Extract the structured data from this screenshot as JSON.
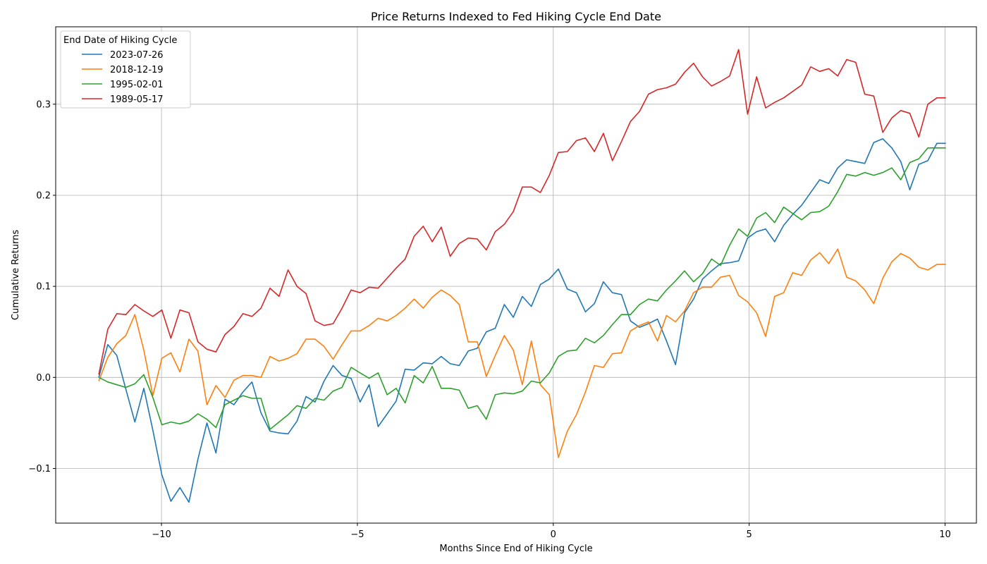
{
  "chart_data": {
    "type": "line",
    "title": "Price Returns Indexed to Fed Hiking Cycle End Date",
    "xlabel": "Months Since End of Hiking Cycle",
    "ylabel": "Cumulative Returns",
    "xlim": [
      -12.7,
      10.8
    ],
    "ylim": [
      -0.16,
      0.385
    ],
    "xticks": [
      -10,
      -5,
      0,
      5,
      10
    ],
    "xtick_labels": [
      "−10",
      "−5",
      "0",
      "5",
      "10"
    ],
    "yticks": [
      -0.1,
      0,
      0.1,
      0.2,
      0.3
    ],
    "ytick_labels": [
      "−0.1",
      "0.0",
      "0.1",
      "0.2",
      "0.3"
    ],
    "grid": true,
    "legend": {
      "title": "End Date of Hiking Cycle",
      "placement": "top-left"
    },
    "x_start": -11.6,
    "x_step": 0.23,
    "series": [
      {
        "name": "2023-07-26",
        "color": "#1f77b4",
        "values": [
          0.0,
          0.036,
          0.024,
          -0.013,
          -0.049,
          -0.012,
          -0.058,
          -0.107,
          -0.136,
          -0.121,
          -0.137,
          -0.09,
          -0.05,
          -0.083,
          -0.024,
          -0.03,
          -0.016,
          -0.005,
          -0.039,
          -0.059,
          -0.061,
          -0.062,
          -0.048,
          -0.021,
          -0.027,
          -0.004,
          0.013,
          0.002,
          -0.001,
          -0.027,
          -0.008,
          -0.054,
          -0.04,
          -0.026,
          0.009,
          0.008,
          0.016,
          0.015,
          0.023,
          0.015,
          0.013,
          0.029,
          0.032,
          0.05,
          0.054,
          0.08,
          0.066,
          0.089,
          0.078,
          0.102,
          0.108,
          0.119,
          0.097,
          0.093,
          0.072,
          0.081,
          0.105,
          0.093,
          0.091,
          0.062,
          0.055,
          0.059,
          0.064,
          0.04,
          0.014,
          0.071,
          0.086,
          0.108,
          0.117,
          0.125,
          0.126,
          0.128,
          0.153,
          0.16,
          0.163,
          0.149,
          0.167,
          0.179,
          0.189,
          0.203,
          0.217,
          0.213,
          0.23,
          0.239,
          0.237,
          0.235,
          0.258,
          0.262,
          0.252,
          0.237,
          0.206,
          0.234,
          0.238,
          0.257,
          0.257
        ]
      },
      {
        "name": "2018-12-19",
        "color": "#ff7f0e",
        "values": [
          -0.004,
          0.022,
          0.037,
          0.046,
          0.069,
          0.03,
          -0.02,
          0.021,
          0.027,
          0.006,
          0.042,
          0.029,
          -0.03,
          -0.009,
          -0.022,
          -0.003,
          0.002,
          0.002,
          0.0,
          0.023,
          0.018,
          0.021,
          0.026,
          0.042,
          0.042,
          0.034,
          0.02,
          0.036,
          0.051,
          0.051,
          0.057,
          0.065,
          0.062,
          0.068,
          0.076,
          0.086,
          0.076,
          0.088,
          0.096,
          0.09,
          0.08,
          0.039,
          0.039,
          0.001,
          0.024,
          0.046,
          0.03,
          -0.008,
          0.04,
          -0.008,
          -0.019,
          -0.088,
          -0.059,
          -0.041,
          -0.016,
          0.013,
          0.011,
          0.026,
          0.027,
          0.051,
          0.057,
          0.061,
          0.04,
          0.068,
          0.061,
          0.073,
          0.093,
          0.099,
          0.099,
          0.11,
          0.112,
          0.09,
          0.083,
          0.071,
          0.045,
          0.089,
          0.093,
          0.115,
          0.112,
          0.129,
          0.137,
          0.125,
          0.141,
          0.11,
          0.106,
          0.096,
          0.081,
          0.109,
          0.127,
          0.136,
          0.131,
          0.121,
          0.118,
          0.124,
          0.124
        ]
      },
      {
        "name": "1995-02-01",
        "color": "#2ca02c",
        "values": [
          0.0,
          -0.005,
          -0.008,
          -0.011,
          -0.007,
          0.003,
          -0.022,
          -0.052,
          -0.049,
          -0.051,
          -0.048,
          -0.04,
          -0.046,
          -0.055,
          -0.03,
          -0.025,
          -0.02,
          -0.023,
          -0.023,
          -0.057,
          -0.049,
          -0.041,
          -0.031,
          -0.034,
          -0.023,
          -0.025,
          -0.015,
          -0.011,
          0.011,
          0.005,
          -0.001,
          0.005,
          -0.019,
          -0.012,
          -0.028,
          0.002,
          -0.006,
          0.012,
          -0.012,
          -0.012,
          -0.014,
          -0.034,
          -0.031,
          -0.046,
          -0.019,
          -0.017,
          -0.018,
          -0.015,
          -0.004,
          -0.006,
          0.005,
          0.023,
          0.029,
          0.03,
          0.043,
          0.038,
          0.046,
          0.058,
          0.069,
          0.069,
          0.08,
          0.086,
          0.084,
          0.096,
          0.106,
          0.117,
          0.105,
          0.114,
          0.13,
          0.123,
          0.145,
          0.163,
          0.155,
          0.175,
          0.181,
          0.17,
          0.187,
          0.18,
          0.173,
          0.181,
          0.182,
          0.188,
          0.204,
          0.223,
          0.221,
          0.225,
          0.222,
          0.225,
          0.23,
          0.217,
          0.236,
          0.24,
          0.252,
          0.252,
          0.252
        ]
      },
      {
        "name": "1989-05-17",
        "color": "#d62728",
        "values": [
          0.003,
          0.053,
          0.07,
          0.069,
          0.08,
          0.073,
          0.067,
          0.074,
          0.043,
          0.074,
          0.071,
          0.039,
          0.031,
          0.028,
          0.047,
          0.056,
          0.07,
          0.067,
          0.076,
          0.098,
          0.089,
          0.118,
          0.1,
          0.092,
          0.062,
          0.057,
          0.059,
          0.076,
          0.096,
          0.093,
          0.099,
          0.098,
          0.109,
          0.12,
          0.13,
          0.155,
          0.166,
          0.149,
          0.165,
          0.133,
          0.147,
          0.153,
          0.152,
          0.14,
          0.16,
          0.168,
          0.182,
          0.209,
          0.209,
          0.203,
          0.222,
          0.247,
          0.248,
          0.26,
          0.263,
          0.248,
          0.268,
          0.238,
          0.259,
          0.281,
          0.292,
          0.311,
          0.316,
          0.318,
          0.322,
          0.335,
          0.345,
          0.33,
          0.32,
          0.325,
          0.331,
          0.36,
          0.289,
          0.33,
          0.296,
          0.302,
          0.307,
          0.314,
          0.321,
          0.341,
          0.336,
          0.339,
          0.331,
          0.349,
          0.346,
          0.311,
          0.309,
          0.269,
          0.285,
          0.293,
          0.29,
          0.264,
          0.3,
          0.307,
          0.307
        ]
      }
    ]
  }
}
